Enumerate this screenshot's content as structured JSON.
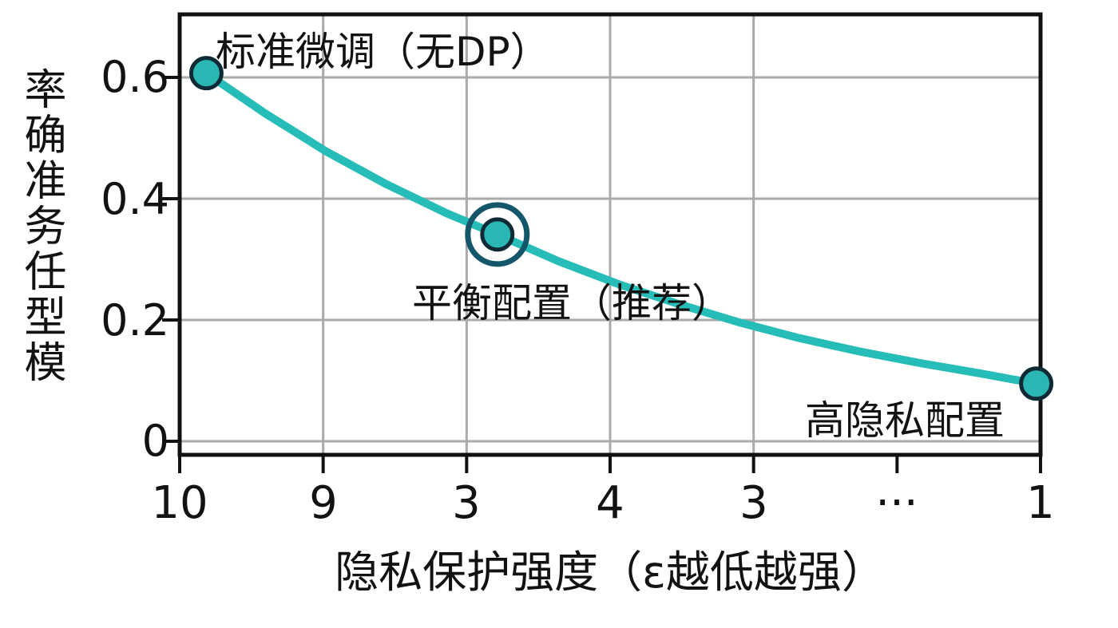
{
  "colors": {
    "curve": "#26bcb7",
    "dot_fill": "#2ab7b4",
    "dot_stroke": "#0e2a35",
    "ring": "#14576b",
    "grid": "#a9a9a9",
    "axis": "#111111",
    "text": "#121212"
  },
  "chart_data": {
    "type": "line",
    "title": "",
    "xlabel": "隐私保护强度（ε越低越强）",
    "ylabel_vertical_chars": "率确准务任型模",
    "x_tick_labels": [
      "10",
      "9",
      "3",
      "4",
      "3",
      "···",
      "1"
    ],
    "y_tick_labels": [
      "0.6",
      "0.4",
      "0.2",
      "0"
    ],
    "y_tick_values": [
      0.6,
      0.4,
      0.2,
      0
    ],
    "ylim": [
      -0.02,
      0.7
    ],
    "grid": true,
    "legend_position": "none",
    "series": [
      {
        "name": "accuracy-vs-privacy-curve",
        "points": [
          [
            0.031,
            0.607
          ],
          [
            0.1,
            0.54
          ],
          [
            0.17,
            0.478
          ],
          [
            0.24,
            0.424
          ],
          [
            0.31,
            0.376
          ],
          [
            0.369,
            0.341
          ],
          [
            0.44,
            0.297
          ],
          [
            0.51,
            0.259
          ],
          [
            0.58,
            0.226
          ],
          [
            0.65,
            0.196
          ],
          [
            0.72,
            0.17
          ],
          [
            0.79,
            0.148
          ],
          [
            0.86,
            0.129
          ],
          [
            0.93,
            0.112
          ],
          [
            0.995,
            0.095
          ]
        ]
      }
    ],
    "annotations": [
      {
        "label": "标准微调（无DP）",
        "t": 0.031,
        "acc": 0.607,
        "highlight": false
      },
      {
        "label": "平衡配置（推荐）",
        "t": 0.369,
        "acc": 0.341,
        "highlight": true
      },
      {
        "label": "高隐私配置",
        "t": 0.995,
        "acc": 0.095,
        "highlight": false
      }
    ]
  }
}
